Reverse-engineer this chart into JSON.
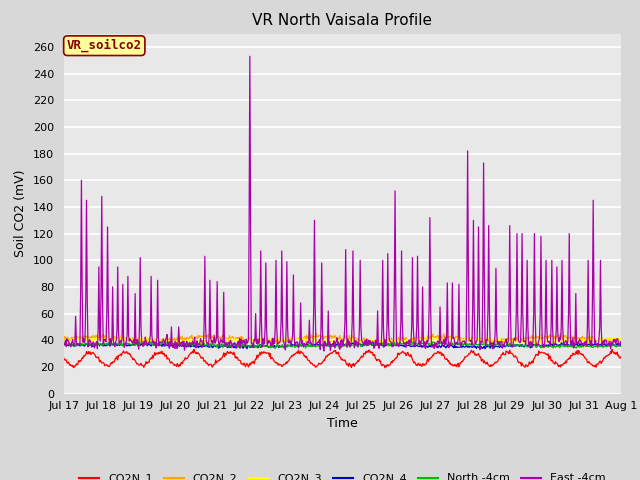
{
  "title": "VR North Vaisala Profile",
  "xlabel": "Time",
  "ylabel": "Soil CO2 (mV)",
  "annotation": "VR_soilco2",
  "ylim": [
    0,
    270
  ],
  "yticks": [
    0,
    20,
    40,
    60,
    80,
    100,
    120,
    140,
    160,
    180,
    200,
    220,
    240,
    260
  ],
  "xtick_labels": [
    "Jul 17",
    "Jul 18",
    "Jul 19",
    "Jul 20",
    "Jul 21",
    "Jul 22",
    "Jul 23",
    "Jul 24",
    "Jul 25",
    "Jul 26",
    "Jul 27",
    "Jul 28",
    "Jul 29",
    "Jul 30",
    "Jul 31",
    "Aug 1"
  ],
  "series_colors": {
    "CO2N_1": "#ff0000",
    "CO2N_2": "#ffa500",
    "CO2N_3": "#ffff00",
    "CO2N_4": "#0000cc",
    "North_4cm": "#00bb00",
    "East_4cm": "#aa00aa"
  },
  "legend_labels": [
    "CO2N_1",
    "CO2N_2",
    "CO2N_3",
    "CO2N_4",
    "North -4cm",
    "East -4cm"
  ],
  "fig_bg_color": "#d8d8d8",
  "plot_bg_color": "#e8e8e8",
  "grid_color": "#ffffff",
  "annotation_box_color": "#ffff99",
  "annotation_border_color": "#880000",
  "title_fontsize": 11,
  "label_fontsize": 9,
  "tick_fontsize": 8
}
